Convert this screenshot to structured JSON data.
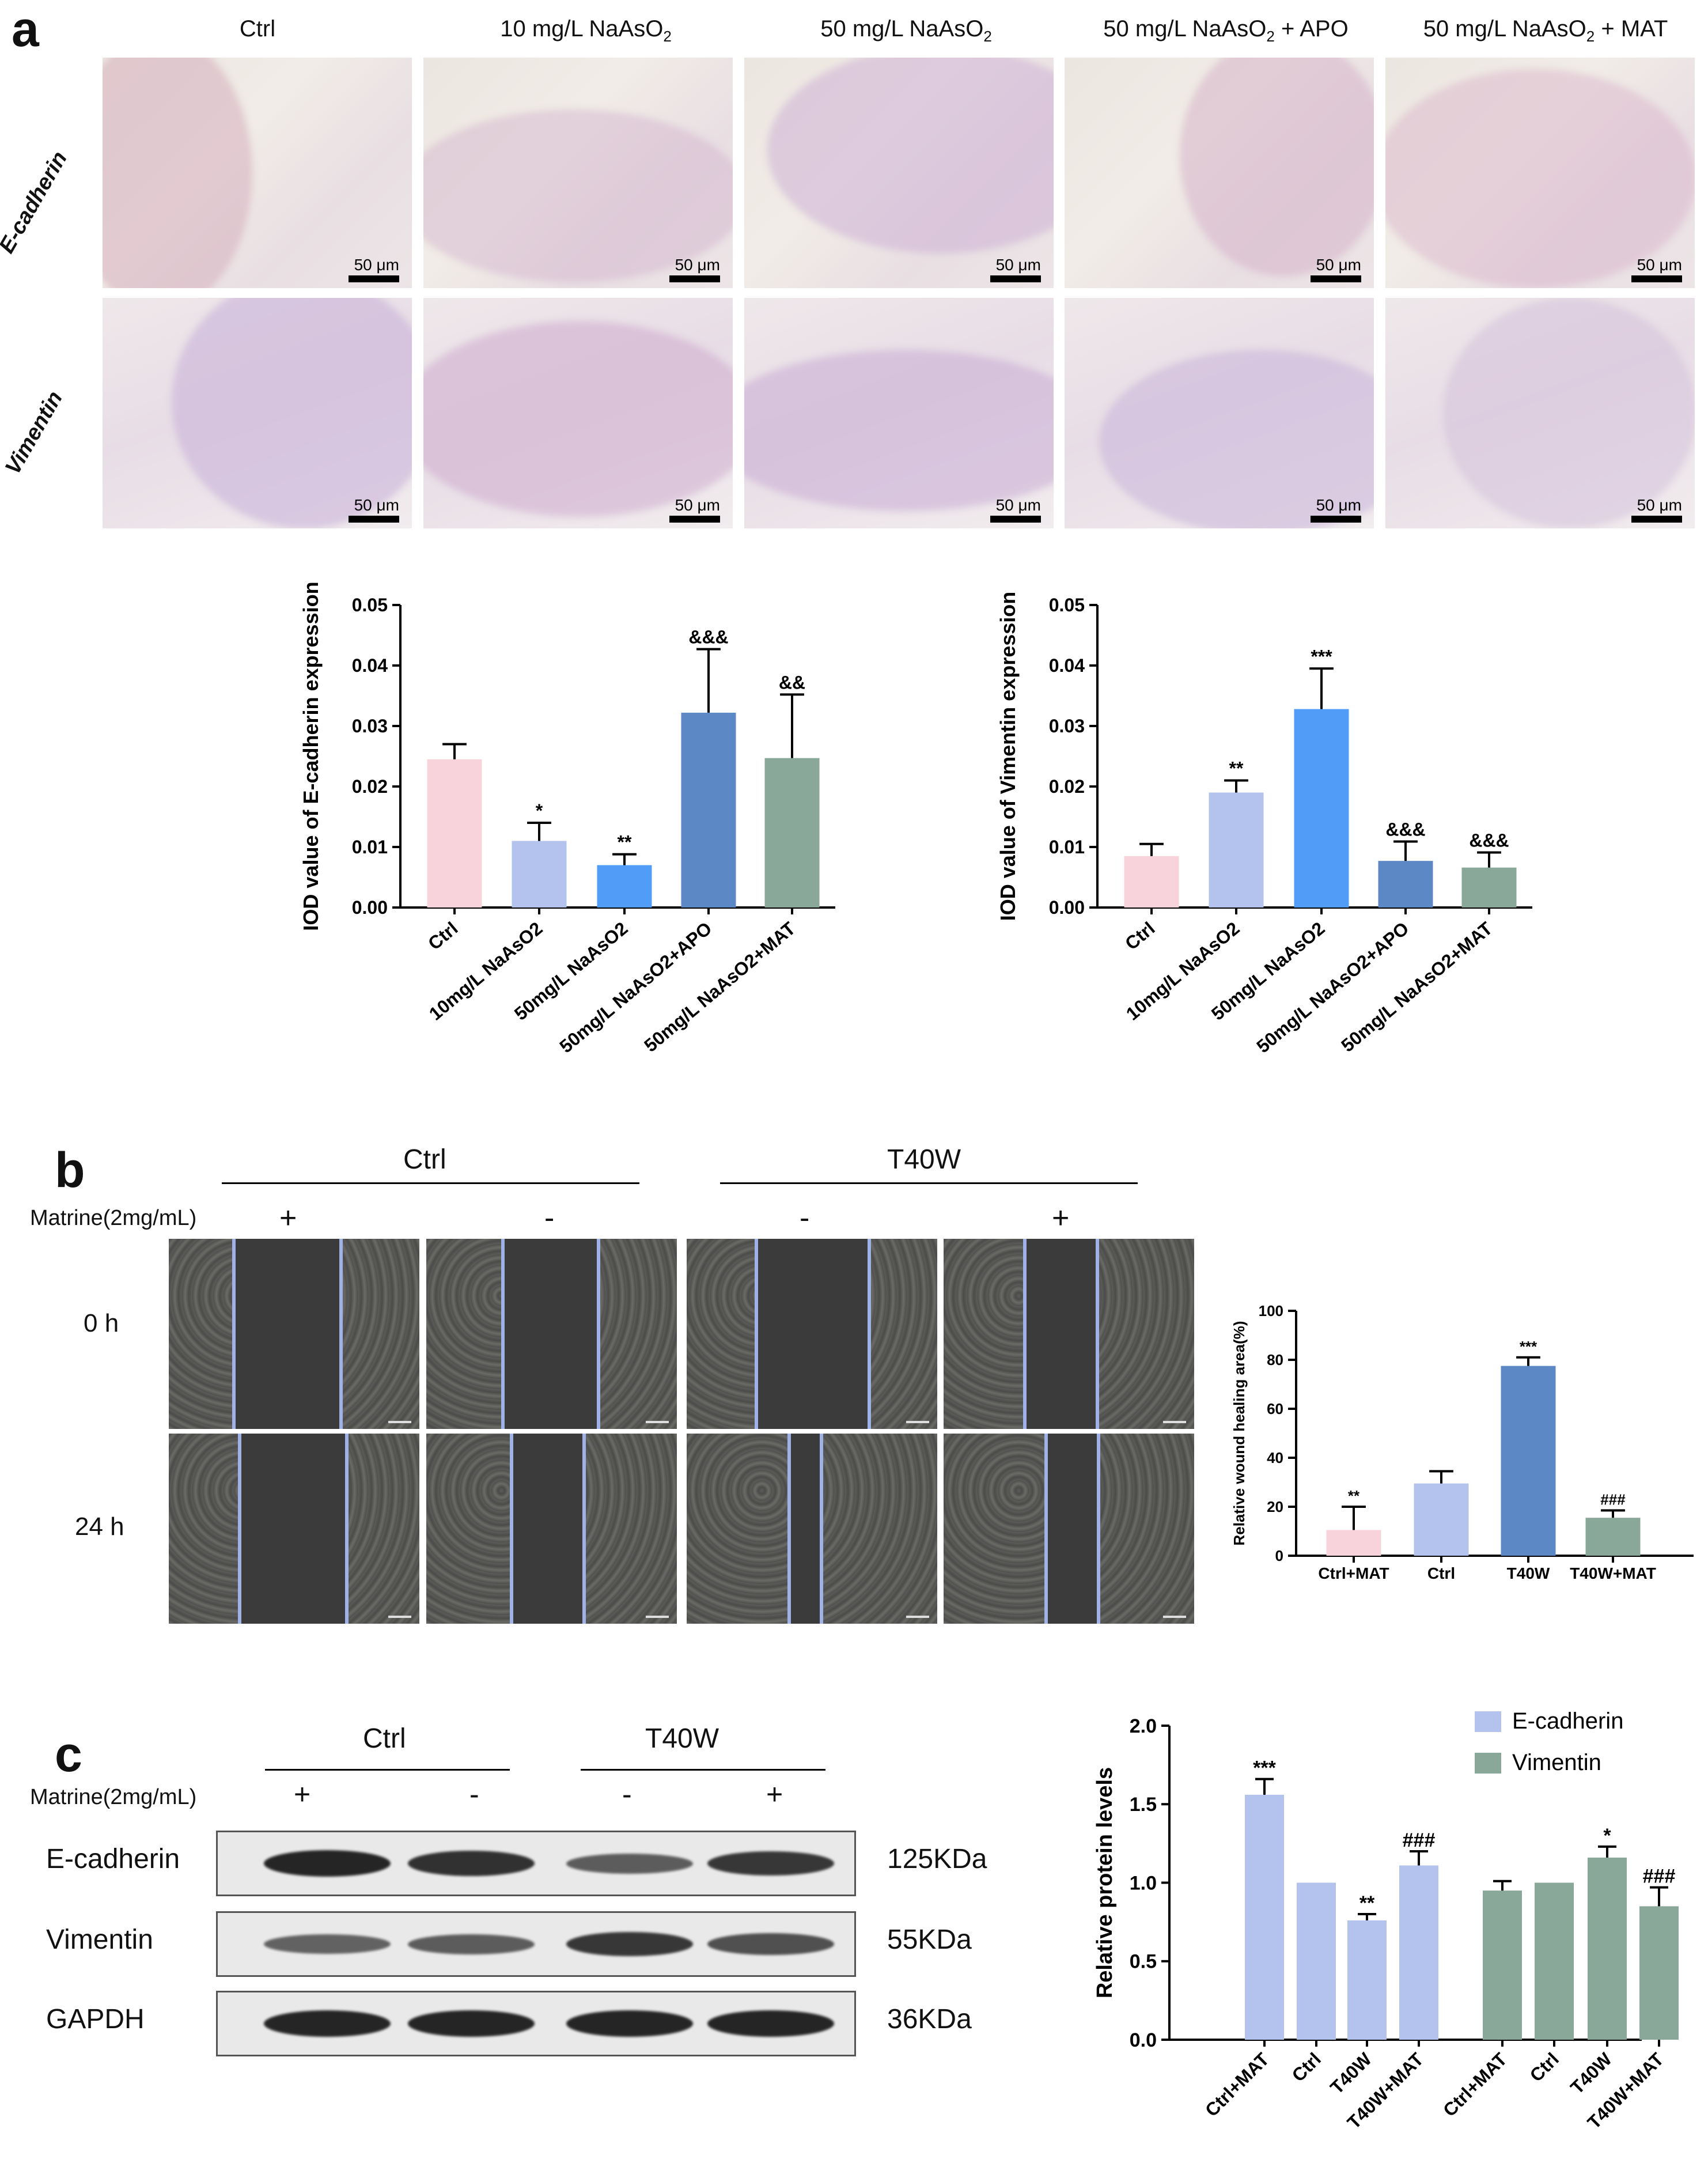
{
  "panel_a": {
    "label": "a",
    "columns": [
      {
        "main": "Ctrl",
        "sub": "",
        "rest": ""
      },
      {
        "main": "10 mg/L NaAsO",
        "sub": "2",
        "rest": ""
      },
      {
        "main": "50 mg/L NaAsO",
        "sub": "2",
        "rest": ""
      },
      {
        "main": "50 mg/L NaAsO",
        "sub": "2",
        "rest": " + APO"
      },
      {
        "main": "50 mg/L NaAsO",
        "sub": "2",
        "rest": " + MAT"
      }
    ],
    "rows": [
      "E-cadherin",
      "Vimentin"
    ],
    "scale_bar": "50 μm"
  },
  "panel_b": {
    "label": "b",
    "group_ctrl": "Ctrl",
    "group_t40w": "T40W",
    "treatment_label": "Matrine(2mg/mL)",
    "signs": [
      "+",
      "-",
      "-",
      "+"
    ],
    "times": [
      "0 h",
      "24 h"
    ]
  },
  "panel_c": {
    "label": "c",
    "group_ctrl": "Ctrl",
    "group_t40w": "T40W",
    "treatment_label": "Matrine(2mg/mL)",
    "signs": [
      "+",
      "-",
      "-",
      "+"
    ],
    "proteins": [
      {
        "name": "E-cadherin",
        "size": "125KDa"
      },
      {
        "name": "Vimentin",
        "size": "55KDa"
      },
      {
        "name": "GAPDH",
        "size": "36KDa"
      }
    ],
    "band_intensity": [
      [
        1.0,
        0.9,
        0.55,
        0.85
      ],
      [
        0.5,
        0.55,
        0.85,
        0.65
      ],
      [
        1.0,
        1.0,
        1.0,
        1.0
      ]
    ]
  },
  "chart_data": [
    {
      "id": "ecad-iod",
      "type": "bar",
      "ylabel": "IOD value of E-cadherin expression",
      "categories": [
        "Ctrl",
        "10mg/L NaAsO2",
        "50mg/L NaAsO2",
        "50mg/L NaAsO2+APO",
        "50mg/L NaAsO2+MAT"
      ],
      "values": [
        0.0245,
        0.011,
        0.007,
        0.0322,
        0.0247
      ],
      "errors": [
        0.0025,
        0.003,
        0.0018,
        0.0105,
        0.0105
      ],
      "annotations": [
        "",
        "*",
        "**",
        "&&&",
        "&&"
      ],
      "colors": [
        "#f9d3dc",
        "#b4c3ee",
        "#519cf7",
        "#5d88c6",
        "#8aa89a"
      ],
      "yticks": [
        "0.00",
        "0.01",
        "0.02",
        "0.03",
        "0.04",
        "0.05"
      ],
      "ylim": [
        0,
        0.05
      ]
    },
    {
      "id": "vim-iod",
      "type": "bar",
      "ylabel": "IOD value of Vimentin expression",
      "categories": [
        "Ctrl",
        "10mg/L NaAsO2",
        "50mg/L NaAsO2",
        "50mg/L NaAsO2+APO",
        "50mg/L NaAsO2+MAT"
      ],
      "values": [
        0.0085,
        0.019,
        0.0328,
        0.0077,
        0.0066
      ],
      "errors": [
        0.002,
        0.002,
        0.0067,
        0.0032,
        0.0025
      ],
      "annotations": [
        "",
        "**",
        "***",
        "&&&",
        "&&&"
      ],
      "colors": [
        "#f9d3dc",
        "#b4c3ee",
        "#519cf7",
        "#5d88c6",
        "#8aa89a"
      ],
      "yticks": [
        "0.00",
        "0.01",
        "0.02",
        "0.03",
        "0.04",
        "0.05"
      ],
      "ylim": [
        0,
        0.05
      ]
    },
    {
      "id": "wound",
      "type": "bar",
      "ylabel": "Relative wound healing area(%)",
      "categories": [
        "Ctrl+MAT",
        "Ctrl",
        "T40W",
        "T40W+MAT"
      ],
      "values": [
        10.5,
        29.5,
        77.5,
        15.5
      ],
      "errors": [
        9.5,
        5.0,
        3.5,
        3.0
      ],
      "annotations": [
        "**",
        "",
        "***",
        "###"
      ],
      "colors": [
        "#f9d3dc",
        "#b4c3ee",
        "#5d88c6",
        "#8aa89a"
      ],
      "yticks": [
        "0",
        "20",
        "40",
        "60",
        "80",
        "100"
      ],
      "ylim": [
        0,
        100
      ]
    },
    {
      "id": "protein",
      "type": "bar",
      "ylabel": "Relative protein  levels",
      "categories": [
        "Ctrl+MAT",
        "Ctrl",
        "T40W",
        "T40W+MAT"
      ],
      "series": [
        {
          "name": "E-cadherin",
          "color": "#b4c3ee",
          "values": [
            1.56,
            1.0,
            0.76,
            1.11
          ],
          "errors": [
            0.1,
            0.0,
            0.04,
            0.09
          ],
          "annotations": [
            "***",
            "",
            "**",
            "###"
          ]
        },
        {
          "name": "Vimentin",
          "color": "#8aa89a",
          "values": [
            0.95,
            1.0,
            1.16,
            0.85
          ],
          "errors": [
            0.06,
            0.0,
            0.07,
            0.12
          ],
          "annotations": [
            "",
            "",
            "*",
            "###"
          ]
        }
      ],
      "yticks": [
        "0.0",
        "0.5",
        "1.0",
        "1.5",
        "2.0"
      ],
      "ylim": [
        0,
        2.0
      ],
      "legend": "top-right"
    }
  ]
}
